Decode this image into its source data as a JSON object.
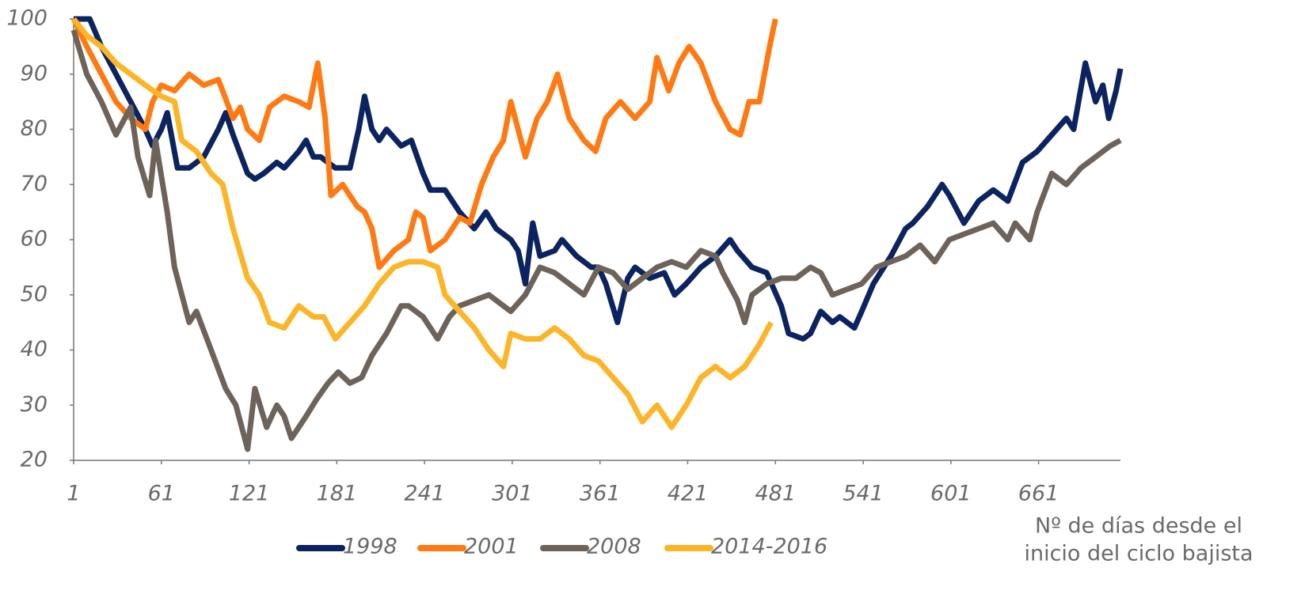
{
  "chart_data": {
    "type": "line",
    "xlim": [
      1,
      717
    ],
    "xticks": [
      1,
      61,
      121,
      181,
      241,
      301,
      361,
      421,
      481,
      541,
      601,
      661
    ],
    "ylim": [
      20,
      100
    ],
    "yticks": [
      20,
      30,
      40,
      50,
      60,
      70,
      80,
      90,
      100
    ],
    "xlabel": [
      "Nº de días desde el",
      "inicio del ciclo bajista"
    ],
    "legend": "bottom",
    "series": [
      {
        "name": "1998",
        "color": "#0b2360",
        "x": [
          1,
          12,
          20,
          30,
          40,
          50,
          55,
          61,
          65,
          72,
          80,
          90,
          100,
          105,
          110,
          120,
          125,
          131,
          140,
          145,
          155,
          160,
          165,
          170,
          180,
          190,
          196,
          200,
          205,
          210,
          215,
          225,
          232,
          240,
          245,
          255,
          265,
          275,
          283,
          290,
          300,
          305,
          310,
          315,
          320,
          330,
          335,
          345,
          355,
          360,
          365,
          373,
          380,
          385,
          395,
          405,
          412,
          420,
          430,
          440,
          450,
          455,
          465,
          475,
          485,
          490,
          500,
          505,
          512,
          520,
          525,
          535,
          540,
          548,
          560,
          570,
          575,
          585,
          595,
          600,
          610,
          620,
          630,
          640,
          650,
          660,
          670,
          680,
          685,
          693,
          700,
          705,
          709,
          714,
          717
        ],
        "values": [
          100,
          100,
          95,
          90,
          85,
          80,
          77,
          80,
          83,
          73,
          73,
          75,
          80,
          83,
          79,
          72,
          71,
          72,
          74,
          73,
          76,
          78,
          75,
          75,
          73,
          73,
          80,
          86,
          80,
          78,
          80,
          77,
          78,
          72,
          69,
          69,
          65,
          62,
          65,
          62,
          60,
          58,
          52,
          63,
          57,
          58,
          60,
          57,
          55,
          55,
          52,
          45,
          53,
          55,
          53,
          54,
          50,
          52,
          55,
          57,
          60,
          58,
          55,
          54,
          48,
          43,
          42,
          43,
          47,
          45,
          46,
          44,
          47,
          52,
          57,
          62,
          63,
          66,
          70,
          68,
          63,
          67,
          69,
          67,
          74,
          76,
          79,
          82,
          80,
          92,
          85,
          88,
          82,
          87,
          91
        ]
      },
      {
        "name": "2001",
        "color": "#ff7a12",
        "x": [
          1,
          10,
          20,
          30,
          40,
          50,
          55,
          61,
          70,
          80,
          90,
          100,
          110,
          115,
          120,
          128,
          135,
          145,
          155,
          162,
          168,
          173,
          177,
          185,
          195,
          200,
          205,
          210,
          220,
          230,
          235,
          240,
          245,
          255,
          265,
          272,
          280,
          288,
          295,
          300,
          305,
          310,
          318,
          325,
          332,
          340,
          350,
          358,
          365,
          375,
          385,
          395,
          400,
          408,
          415,
          422,
          430,
          440,
          450,
          457,
          463,
          470,
          477,
          481
        ],
        "values": [
          100,
          95,
          90,
          85,
          82,
          80,
          85,
          88,
          87,
          90,
          88,
          89,
          82,
          84,
          80,
          78,
          84,
          86,
          85,
          84,
          92,
          82,
          68,
          70,
          66,
          65,
          62,
          55,
          58,
          60,
          65,
          64,
          58,
          60,
          64,
          63,
          70,
          75,
          78,
          85,
          80,
          75,
          82,
          85,
          90,
          82,
          78,
          76,
          82,
          85,
          82,
          85,
          93,
          87,
          92,
          95,
          92,
          85,
          80,
          79,
          85,
          85,
          95,
          100
        ]
      },
      {
        "name": "2008",
        "color": "#6e635a",
        "x": [
          1,
          10,
          20,
          30,
          40,
          45,
          53,
          57,
          65,
          70,
          80,
          85,
          95,
          105,
          112,
          120,
          125,
          133,
          140,
          145,
          150,
          160,
          167,
          175,
          182,
          190,
          198,
          205,
          215,
          225,
          230,
          240,
          250,
          258,
          265,
          275,
          285,
          300,
          310,
          320,
          330,
          340,
          350,
          360,
          370,
          380,
          390,
          400,
          410,
          420,
          430,
          440,
          445,
          455,
          460,
          465,
          475,
          485,
          495,
          505,
          512,
          520,
          530,
          540,
          550,
          560,
          570,
          580,
          590,
          600,
          610,
          620,
          630,
          640,
          645,
          655,
          660,
          670,
          680,
          690,
          700,
          710,
          717
        ],
        "values": [
          98,
          90,
          85,
          79,
          84,
          75,
          68,
          78,
          65,
          55,
          45,
          47,
          40,
          33,
          30,
          22,
          33,
          26,
          30,
          28,
          24,
          28,
          31,
          34,
          36,
          34,
          35,
          39,
          43,
          48,
          48,
          46,
          42,
          46,
          48,
          49,
          50,
          47,
          50,
          55,
          54,
          52,
          50,
          55,
          54,
          51,
          53,
          55,
          56,
          55,
          58,
          57,
          54,
          49,
          45,
          50,
          52,
          53,
          53,
          55,
          54,
          50,
          51,
          52,
          55,
          56,
          57,
          59,
          56,
          60,
          61,
          62,
          63,
          60,
          63,
          60,
          65,
          72,
          70,
          73,
          75,
          77,
          78
        ]
      },
      {
        "name": "2014-2016",
        "color": "#fbb527",
        "x": [
          1,
          10,
          20,
          30,
          40,
          50,
          61,
          70,
          75,
          85,
          95,
          103,
          110,
          120,
          128,
          135,
          145,
          155,
          165,
          172,
          180,
          190,
          200,
          210,
          220,
          230,
          240,
          250,
          255,
          265,
          275,
          285,
          295,
          300,
          310,
          320,
          330,
          340,
          350,
          360,
          370,
          380,
          390,
          400,
          410,
          420,
          430,
          440,
          450,
          460,
          470,
          478
        ],
        "values": [
          100,
          97,
          95,
          92,
          90,
          88,
          86,
          85,
          78,
          76,
          72,
          70,
          62,
          53,
          50,
          45,
          44,
          48,
          46,
          46,
          42,
          45,
          48,
          52,
          55,
          56,
          56,
          55,
          50,
          47,
          44,
          40,
          37,
          43,
          42,
          42,
          44,
          42,
          39,
          38,
          35,
          32,
          27,
          30,
          26,
          30,
          35,
          37,
          35,
          37,
          41,
          45
        ]
      }
    ]
  }
}
